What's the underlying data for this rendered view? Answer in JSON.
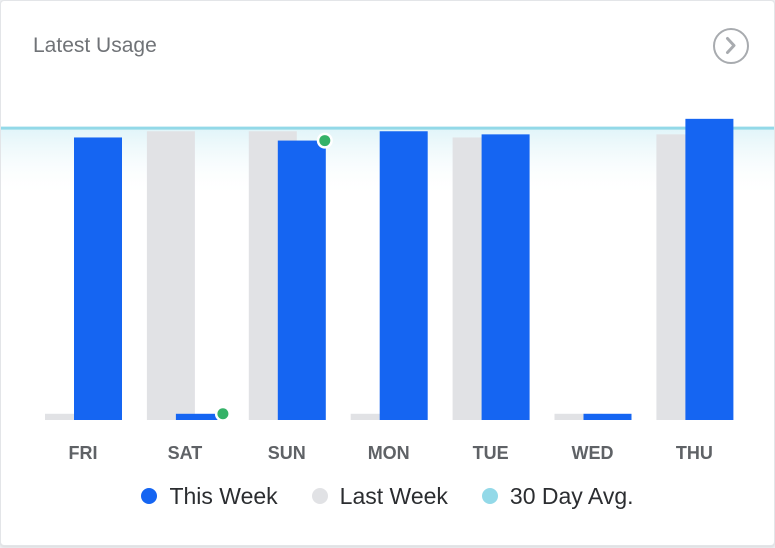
{
  "card": {
    "title": "Latest Usage",
    "next_icon": "chevron-right-circle-icon"
  },
  "chart_data": {
    "type": "bar",
    "categories": [
      "FRI",
      "SAT",
      "SUN",
      "MON",
      "TUE",
      "WED",
      "THU"
    ],
    "ylim": [
      0,
      105
    ],
    "series": [
      {
        "name": "This Week",
        "values": [
          91,
          2,
          90,
          93,
          92,
          2,
          97
        ],
        "color": "#1565f2"
      },
      {
        "name": "Last Week",
        "values": [
          2,
          93,
          93,
          2,
          91,
          2,
          92
        ],
        "color": "#e1e2e5"
      }
    ],
    "reference_line": {
      "name": "30 Day Avg.",
      "value": 94,
      "color": "#93d9e8"
    },
    "markers": [
      {
        "category": "SAT",
        "series": "This Week",
        "color": "#35b268"
      },
      {
        "category": "SUN",
        "series": "This Week",
        "color": "#35b268"
      }
    ],
    "grid": false,
    "legend_position": "bottom"
  },
  "legend": [
    {
      "label": "This Week",
      "color": "#1565f2"
    },
    {
      "label": "Last Week",
      "color": "#e1e2e5"
    },
    {
      "label": "30 Day Avg.",
      "color": "#93d9e8"
    }
  ]
}
